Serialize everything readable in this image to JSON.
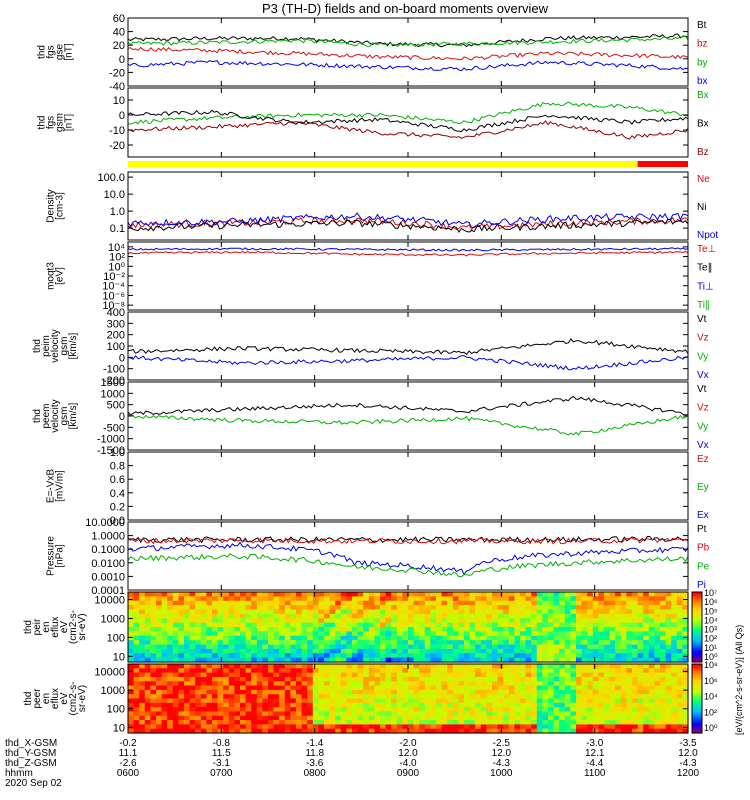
{
  "title": "P3 (TH-D) fields and on-board moments overview",
  "chart_data": [
    {
      "id": "p1",
      "type": "line",
      "ylabel": [
        "thd",
        "fgs",
        "gse",
        "[nT]"
      ],
      "yticks": [
        "60",
        "40",
        "20",
        "0",
        "-20",
        "-40"
      ],
      "ylim": [
        -40,
        60
      ],
      "legend": [
        {
          "label": "Bt",
          "color": "#000000"
        },
        {
          "label": "bz",
          "color": "#d01010"
        },
        {
          "label": "by",
          "color": "#00b000"
        },
        {
          "label": "bx",
          "color": "#0000e0"
        }
      ],
      "x": [
        0,
        0.15,
        0.3,
        0.45,
        0.6,
        0.75,
        0.9,
        1.0
      ],
      "series": [
        {
          "name": "Bt",
          "color": "#000000",
          "values": [
            28,
            30,
            30,
            22,
            20,
            30,
            32,
            34
          ]
        },
        {
          "name": "by",
          "color": "#00b000",
          "values": [
            22,
            24,
            27,
            20,
            22,
            25,
            28,
            30
          ]
        },
        {
          "name": "bz",
          "color": "#d01010",
          "values": [
            15,
            12,
            8,
            3,
            0,
            8,
            5,
            2
          ]
        },
        {
          "name": "bx",
          "color": "#0000e0",
          "values": [
            -10,
            -5,
            -8,
            -12,
            -15,
            -5,
            -10,
            -15
          ]
        }
      ]
    },
    {
      "id": "p2",
      "type": "line",
      "ylabel": [
        "thd",
        "fgs",
        "gsm",
        "[nT]"
      ],
      "yticks": [
        "10",
        "0",
        "-10",
        "-20"
      ],
      "ylim": [
        -28,
        18
      ],
      "legend": [
        {
          "label": "Bx",
          "color": "#00b000"
        },
        {
          "label": "Bx",
          "color": "#000000"
        },
        {
          "label": "Bz",
          "color": "#8b0000"
        }
      ],
      "x": [
        0,
        0.15,
        0.3,
        0.45,
        0.6,
        0.75,
        0.9,
        1.0
      ],
      "series": [
        {
          "name": "Bx",
          "color": "#00b000",
          "values": [
            -5,
            -2,
            0,
            0,
            -5,
            8,
            5,
            0
          ]
        },
        {
          "name": "Bx",
          "color": "#000000",
          "values": [
            0,
            2,
            -5,
            -3,
            -10,
            0,
            -5,
            -2
          ]
        },
        {
          "name": "Bz",
          "color": "#8b0000",
          "values": [
            -10,
            -8,
            -5,
            -12,
            -15,
            -5,
            -15,
            -10
          ]
        }
      ]
    },
    {
      "id": "p3",
      "type": "line",
      "scale": "log",
      "ylabel": [
        "Density",
        "[cm-3]"
      ],
      "yticks": [
        "100.0",
        "10.0",
        "1.0",
        "0.1"
      ],
      "ylim": [
        0.02,
        200
      ],
      "legend": [
        {
          "label": "Ne",
          "color": "#d01010"
        },
        {
          "label": "Ni",
          "color": "#000000"
        },
        {
          "label": "Npot",
          "color": "#0000e0"
        }
      ],
      "x": [
        0,
        0.2,
        0.4,
        0.6,
        0.8,
        1.0
      ],
      "series": [
        {
          "name": "Ne",
          "color": "#d01010",
          "values": [
            0.15,
            0.2,
            0.3,
            0.1,
            0.2,
            0.3
          ]
        },
        {
          "name": "Ni",
          "color": "#000000",
          "values": [
            0.1,
            0.15,
            0.2,
            0.08,
            0.15,
            0.25
          ]
        },
        {
          "name": "Npot",
          "color": "#0000e0",
          "values": [
            0.2,
            0.25,
            0.5,
            0.15,
            0.4,
            0.5
          ]
        }
      ]
    },
    {
      "id": "p4",
      "type": "line",
      "scale": "log",
      "ylabel": [
        "moqt3",
        "[eV]"
      ],
      "yticks": [
        "10⁴",
        "10²",
        "10⁰",
        "10⁻²",
        "10⁻⁴",
        "10⁻⁶",
        "10⁻⁸"
      ],
      "ylim": [
        1e-09,
        100000.0
      ],
      "legend": [
        {
          "label": "Te⊥",
          "color": "#d01010"
        },
        {
          "label": "Te∥",
          "color": "#000000"
        },
        {
          "label": "Ti⊥",
          "color": "#0000e0"
        },
        {
          "label": "Ti∥",
          "color": "#00b000"
        }
      ],
      "x": [
        0,
        0.2,
        0.4,
        0.6,
        0.8,
        1.0
      ],
      "series": [
        {
          "name": "Ti",
          "color": "#0000e0",
          "values": [
            3000,
            4000,
            3000,
            2000,
            3000,
            4000
          ]
        },
        {
          "name": "Te",
          "color": "#d01010",
          "values": [
            500,
            800,
            300,
            200,
            500,
            800
          ]
        }
      ]
    },
    {
      "id": "p5",
      "type": "line",
      "ylabel": [
        "thd",
        "peim",
        "velocity",
        "gsm",
        "[km/s]"
      ],
      "yticks": [
        "400",
        "300",
        "200",
        "100",
        "0",
        "-100",
        "-200"
      ],
      "ylim": [
        -200,
        400
      ],
      "legend": [
        {
          "label": "Vt",
          "color": "#000000"
        },
        {
          "label": "Vz",
          "color": "#d01010"
        },
        {
          "label": "Vy",
          "color": "#00b000"
        },
        {
          "label": "Vx",
          "color": "#0000e0"
        }
      ],
      "x": [
        0,
        0.2,
        0.4,
        0.6,
        0.8,
        1.0
      ],
      "series": [
        {
          "name": "Vt",
          "color": "#000000",
          "values": [
            50,
            80,
            60,
            40,
            150,
            50
          ]
        },
        {
          "name": "Vx",
          "color": "#0000e0",
          "values": [
            0,
            -50,
            -30,
            0,
            -100,
            0
          ]
        }
      ]
    },
    {
      "id": "p6",
      "type": "line",
      "ylabel": [
        "thd",
        "peem",
        "velocity",
        "gsm",
        "[km/s]"
      ],
      "yticks": [
        "1500",
        "1000",
        "500",
        "0",
        "-500",
        "-1000",
        "-1500"
      ],
      "ylim": [
        -1500,
        1500
      ],
      "legend": [
        {
          "label": "Vt",
          "color": "#000000"
        },
        {
          "label": "Vz",
          "color": "#d01010"
        },
        {
          "label": "Vy",
          "color": "#00b000"
        },
        {
          "label": "Vx",
          "color": "#0000e0"
        }
      ],
      "x": [
        0,
        0.2,
        0.4,
        0.6,
        0.8,
        1.0
      ],
      "series": [
        {
          "name": "Vt",
          "color": "#000000",
          "values": [
            100,
            300,
            500,
            200,
            800,
            100
          ]
        },
        {
          "name": "Vy",
          "color": "#00b000",
          "values": [
            0,
            -200,
            -300,
            -100,
            -800,
            0
          ]
        }
      ]
    },
    {
      "id": "p7",
      "type": "line",
      "ylabel": [
        "E=-VxB",
        "[mV/m]"
      ],
      "yticks": [
        "1.0",
        "0.8",
        "0.6",
        "0.4",
        "0.2",
        "0.0"
      ],
      "ylim": [
        0,
        1
      ],
      "legend": [
        {
          "label": "Ez",
          "color": "#d01010"
        },
        {
          "label": "Ey",
          "color": "#00b000"
        },
        {
          "label": "Ex",
          "color": "#0000e0"
        }
      ],
      "series": []
    },
    {
      "id": "p8",
      "type": "line",
      "scale": "log",
      "ylabel": [
        "Pressure",
        "[nPa]"
      ],
      "yticks": [
        "10.0000",
        "1.0000",
        "0.1000",
        "0.0100",
        "0.0010",
        "0.0001"
      ],
      "ylim": [
        0.0001,
        10
      ],
      "legend": [
        {
          "label": "Pt",
          "color": "#000000"
        },
        {
          "label": "Pb",
          "color": "#d01010"
        },
        {
          "label": "Pe",
          "color": "#00b000"
        },
        {
          "label": "Pi",
          "color": "#0000e0"
        }
      ],
      "x": [
        0,
        0.2,
        0.4,
        0.6,
        0.8,
        1.0
      ],
      "series": [
        {
          "name": "Pt",
          "color": "#000000",
          "values": [
            0.5,
            0.5,
            0.5,
            0.5,
            0.5,
            0.6
          ]
        },
        {
          "name": "Pb",
          "color": "#d01010",
          "values": [
            0.4,
            0.45,
            0.4,
            0.4,
            0.4,
            0.5
          ]
        },
        {
          "name": "Pi",
          "color": "#0000e0",
          "values": [
            0.1,
            0.2,
            0.01,
            0.002,
            0.05,
            0.1
          ]
        },
        {
          "name": "Pe",
          "color": "#00b000",
          "values": [
            0.02,
            0.03,
            0.005,
            0.001,
            0.01,
            0.02
          ]
        }
      ]
    },
    {
      "id": "p9",
      "type": "heatmap",
      "scale": "log",
      "ylabel": [
        "thd",
        "peir",
        "en",
        "eflux",
        "eV",
        "(cm2-s-",
        "sr-eV)"
      ],
      "yticks": [
        "10000",
        "1000",
        "100",
        "10"
      ],
      "ylim": [
        5,
        25000
      ],
      "colorbar": {
        "ticks": [
          "10⁷",
          "10⁶",
          "10⁵",
          "10⁴",
          "10³",
          "10²",
          "10¹",
          "10⁰"
        ]
      }
    },
    {
      "id": "p10",
      "type": "heatmap",
      "scale": "log",
      "ylabel": [
        "thd",
        "peer",
        "en",
        "eflux",
        "eV",
        "(cm2-s-",
        "sr-eV)"
      ],
      "yticks": [
        "10000",
        "1000",
        "100",
        "10"
      ],
      "ylim": [
        5,
        25000
      ],
      "colorbar": {
        "ticks": [
          "10⁸",
          "10⁶",
          "10⁴",
          "10²",
          "10⁰"
        ]
      }
    }
  ],
  "bar_strip": {
    "yellow_until": 0.91,
    "colors": [
      "#ffff00",
      "#ff0000"
    ]
  },
  "colorbar_label": "[eV/(cm^2-s-sr-eV)] (All Qs)",
  "x_axis": {
    "rows": [
      {
        "label": "thd_X-GSM",
        "values": [
          "-0.2",
          "-0.8",
          "-1.4",
          "-2.0",
          "-2.5",
          "-3.0",
          "-3.5"
        ]
      },
      {
        "label": "thd_Y-GSM",
        "values": [
          "11.1",
          "11.5",
          "11.8",
          "12.0",
          "12.0",
          "12.1",
          "12.0"
        ]
      },
      {
        "label": "thd_Z-GSM",
        "values": [
          "-2.6",
          "-3.1",
          "-3.6",
          "-4.0",
          "-4.3",
          "-4.4",
          "-4.3"
        ]
      },
      {
        "label": "hhmm",
        "values": [
          "0600",
          "0700",
          "0800",
          "0900",
          "1000",
          "1100",
          "1200"
        ]
      }
    ],
    "date": "2020 Sep 02"
  }
}
